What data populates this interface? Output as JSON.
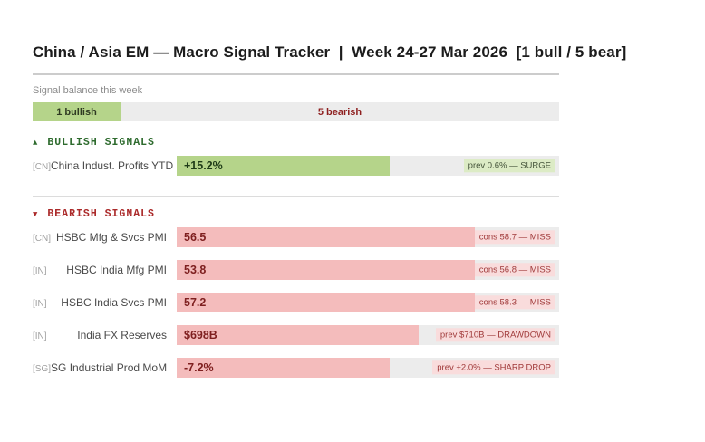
{
  "header": {
    "title": "China / Asia EM — Macro Signal Tracker  |  Week 24-27 Mar 2026  [1 bull / 5 bear]"
  },
  "balance": {
    "label": "Signal balance this week",
    "bullish_label": "1 bullish",
    "bearish_label": "5 bearish",
    "bullish_pct": 16.7
  },
  "sections": {
    "bullish": {
      "marker": "▲",
      "title": "BULLISH SIGNALS"
    },
    "bearish": {
      "marker": "▼",
      "title": "BEARISH SIGNALS"
    }
  },
  "signals": {
    "bullish": [
      {
        "country": "[CN]",
        "name": "China Indust. Profits YTD",
        "value": "+15.2%",
        "note": "prev 0.6% — SURGE",
        "fill_pct": 55.8
      }
    ],
    "bearish": [
      {
        "country": "[CN]",
        "name": "HSBC Mfg & Svcs PMI",
        "value": "56.5",
        "note": "cons 58.7 — MISS",
        "fill_pct": 77.9
      },
      {
        "country": "[IN]",
        "name": "HSBC India Mfg PMI",
        "value": "53.8",
        "note": "cons 56.8 — MISS",
        "fill_pct": 77.9
      },
      {
        "country": "[IN]",
        "name": "HSBC India Svcs PMI",
        "value": "57.2",
        "note": "cons 58.3 — MISS",
        "fill_pct": 77.9
      },
      {
        "country": "[IN]",
        "name": "India FX Reserves",
        "value": "$698B",
        "note": "prev $710B — DRAWDOWN",
        "fill_pct": 63.2
      },
      {
        "country": "[SG]",
        "name": "SG Industrial Prod MoM",
        "value": "-7.2%",
        "note": "prev +2.0% — SHARP DROP",
        "fill_pct": 55.8
      }
    ]
  },
  "colors": {
    "bullish_fill": "#b5d48a",
    "bearish_fill": "#f4bcbc",
    "track": "#ececec",
    "bullish_heading": "#2e6b2e",
    "bearish_heading": "#ab2a2a",
    "bearish_text": "#8e1f1f",
    "bullish_note_bg": "#dcebc5",
    "bearish_note_bg": "#f9dcdc"
  },
  "chart_data": {
    "type": "bar",
    "title": "China / Asia EM — Macro Signal Tracker | Week 24-27 Mar 2026",
    "legend_position": "none",
    "summary": {
      "bullish_count": 1,
      "bearish_count": 5
    },
    "categories": [
      "China Indust. Profits YTD",
      "HSBC Mfg & Svcs PMI",
      "HSBC India Mfg PMI",
      "HSBC India Svcs PMI",
      "India FX Reserves",
      "SG Industrial Prod MoM"
    ],
    "series": [
      {
        "name": "signals",
        "values": [
          15.2,
          56.5,
          53.8,
          57.2,
          698,
          -7.2
        ],
        "value_labels": [
          "+15.2%",
          "56.5",
          "53.8",
          "57.2",
          "$698B",
          "-7.2%"
        ],
        "directions": [
          "bullish",
          "bearish",
          "bearish",
          "bearish",
          "bearish",
          "bearish"
        ],
        "countries": [
          "CN",
          "CN",
          "IN",
          "IN",
          "IN",
          "SG"
        ],
        "annotations": [
          "prev 0.6% — SURGE",
          "cons 58.7 — MISS",
          "cons 56.8 — MISS",
          "cons 58.3 — MISS",
          "prev $710B — DRAWDOWN",
          "prev +2.0% — SHARP DROP"
        ],
        "bar_fill_pct_of_track": [
          55.8,
          77.9,
          77.9,
          77.9,
          63.2,
          55.8
        ]
      }
    ]
  }
}
